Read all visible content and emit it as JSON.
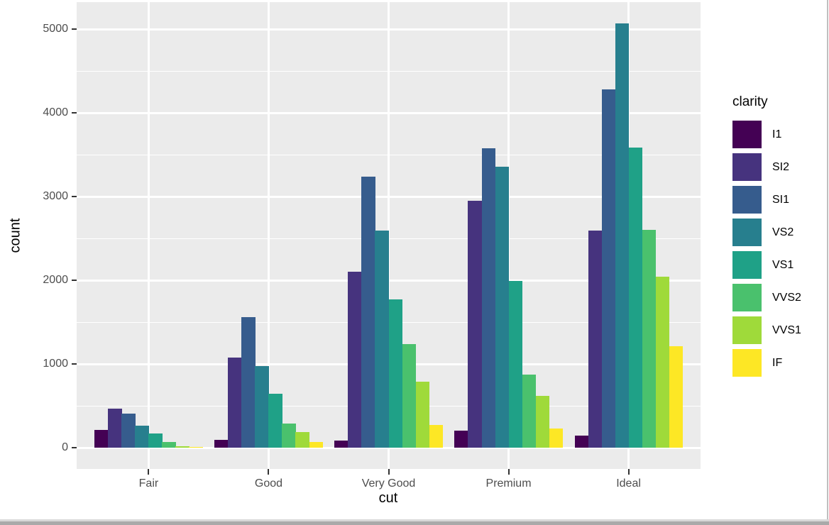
{
  "chart_data": {
    "type": "bar",
    "mode": "grouped-dodge",
    "title": "",
    "xlabel": "cut",
    "ylabel": "count",
    "legend_title": "clarity",
    "legend_position": "right",
    "categories": [
      "Fair",
      "Good",
      "Very Good",
      "Premium",
      "Ideal"
    ],
    "series": [
      {
        "name": "I1",
        "color": "#440154",
        "values": [
          210,
          96,
          84,
          205,
          146
        ]
      },
      {
        "name": "SI2",
        "color": "#46337E",
        "values": [
          466,
          1081,
          2100,
          2949,
          2598
        ]
      },
      {
        "name": "SI1",
        "color": "#365C8D",
        "values": [
          408,
          1560,
          3240,
          3575,
          4282
        ]
      },
      {
        "name": "VS2",
        "color": "#277F8E",
        "values": [
          261,
          978,
          2591,
          3357,
          5071
        ]
      },
      {
        "name": "VS1",
        "color": "#1FA187",
        "values": [
          170,
          648,
          1775,
          1989,
          3589
        ]
      },
      {
        "name": "VVS2",
        "color": "#4AC16D",
        "values": [
          69,
          286,
          1235,
          870,
          2606
        ]
      },
      {
        "name": "VVS1",
        "color": "#9FDA3A",
        "values": [
          17,
          186,
          789,
          616,
          2047
        ]
      },
      {
        "name": "IF",
        "color": "#FDE725",
        "values": [
          9,
          71,
          268,
          230,
          1212
        ]
      }
    ],
    "y_major_ticks": [
      0,
      1000,
      2000,
      3000,
      4000,
      5000
    ],
    "y_minor_ticks": [
      500,
      1500,
      2500,
      3500,
      4500
    ],
    "ylim": [
      -254,
      5325
    ],
    "grid": true,
    "style": {
      "panel_bg": "#EBEBEB",
      "grid_color": "#FFFFFF",
      "tick_mark_color": "#333333",
      "tick_label_color": "#4D4D4D",
      "axis_title_color": "#000000",
      "legend_text_color": "#000000"
    }
  }
}
